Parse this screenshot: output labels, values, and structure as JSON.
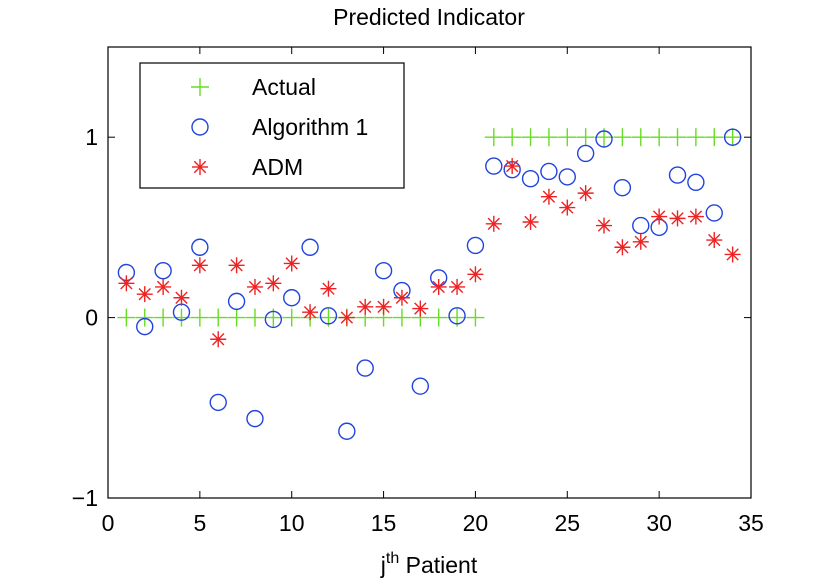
{
  "chart_data": {
    "type": "scatter",
    "title": "Predicted Indicator",
    "xlabel_main": "j",
    "xlabel_sup": "th",
    "xlabel_rest": " Patient",
    "ylabel": "",
    "xlim": [
      0,
      35
    ],
    "ylim": [
      -1,
      1.5
    ],
    "xticks": [
      0,
      5,
      10,
      15,
      20,
      25,
      30,
      35
    ],
    "xtick_labels": [
      "0",
      "5",
      "10",
      "15",
      "20",
      "25",
      "30",
      "35"
    ],
    "yticks": [
      -1,
      0,
      1
    ],
    "ytick_labels": [
      "−1",
      "0",
      "1"
    ],
    "grid": false,
    "legend_position": "top-left",
    "series": [
      {
        "name": "Actual",
        "marker": "plus",
        "color": "#66dd22",
        "x": [
          1,
          2,
          3,
          4,
          5,
          6,
          7,
          8,
          9,
          10,
          11,
          12,
          13,
          14,
          15,
          16,
          17,
          18,
          19,
          20,
          21,
          22,
          23,
          24,
          25,
          26,
          27,
          28,
          29,
          30,
          31,
          32,
          33,
          34
        ],
        "y": [
          0,
          0,
          0,
          0,
          0,
          0,
          0,
          0,
          0,
          0,
          0,
          0,
          0,
          0,
          0,
          0,
          0,
          0,
          0,
          0,
          1,
          1,
          1,
          1,
          1,
          1,
          1,
          1,
          1,
          1,
          1,
          1,
          1,
          1
        ]
      },
      {
        "name": "Algorithm 1",
        "marker": "circle",
        "color": "#2244dd",
        "x": [
          1,
          2,
          3,
          4,
          5,
          6,
          7,
          8,
          9,
          10,
          11,
          12,
          13,
          14,
          15,
          16,
          17,
          18,
          19,
          20,
          21,
          22,
          23,
          24,
          25,
          26,
          27,
          28,
          29,
          30,
          31,
          32,
          33,
          34
        ],
        "y": [
          0.25,
          -0.05,
          0.26,
          0.03,
          0.39,
          -0.47,
          0.09,
          -0.56,
          -0.01,
          0.11,
          0.39,
          0.01,
          -0.63,
          -0.28,
          0.26,
          0.15,
          -0.38,
          0.22,
          0.01,
          0.4,
          0.84,
          0.82,
          0.77,
          0.81,
          0.78,
          0.91,
          0.99,
          0.72,
          0.51,
          0.5,
          0.79,
          0.75,
          0.58,
          1.0
        ]
      },
      {
        "name": "ADM",
        "marker": "asterisk",
        "color": "#ee2222",
        "x": [
          1,
          2,
          3,
          4,
          5,
          6,
          7,
          8,
          9,
          10,
          11,
          12,
          13,
          14,
          15,
          16,
          17,
          18,
          19,
          20,
          21,
          22,
          23,
          24,
          25,
          26,
          27,
          28,
          29,
          30,
          31,
          32,
          33,
          34
        ],
        "y": [
          0.19,
          0.13,
          0.17,
          0.11,
          0.29,
          -0.12,
          0.29,
          0.17,
          0.19,
          0.3,
          0.03,
          0.16,
          0.0,
          0.06,
          0.06,
          0.11,
          0.05,
          0.17,
          0.17,
          0.24,
          0.52,
          0.84,
          0.53,
          0.67,
          0.61,
          0.69,
          0.51,
          0.39,
          0.42,
          0.56,
          0.55,
          0.56,
          0.43,
          0.35
        ]
      }
    ]
  }
}
